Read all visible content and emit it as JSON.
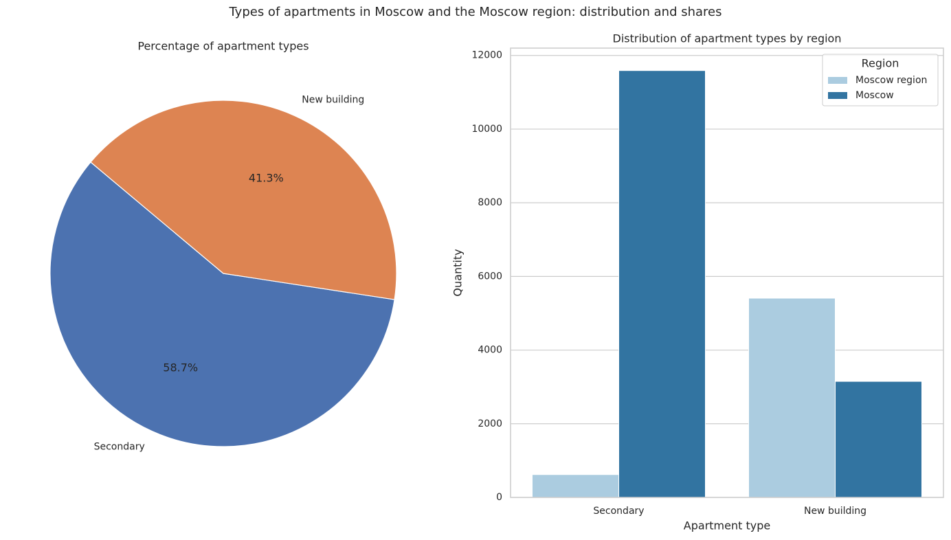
{
  "title": "Types of apartments in Moscow and the Moscow region: distribution and shares",
  "chart_data": [
    {
      "type": "pie",
      "title": "Percentage of apartment types",
      "categories": [
        "Secondary",
        "New building"
      ],
      "values": [
        58.7,
        41.3
      ],
      "value_labels": [
        "58.7%",
        "41.3%"
      ],
      "colors": [
        "#4c72b0",
        "#dd8452"
      ]
    },
    {
      "type": "bar",
      "title": "Distribution of apartment types by region",
      "categories": [
        "Secondary",
        "New building"
      ],
      "series": [
        {
          "name": "Moscow region",
          "color": "#abcce0",
          "values": [
            620,
            5410
          ]
        },
        {
          "name": "Moscow",
          "color": "#3274a1",
          "values": [
            11590,
            3150
          ]
        }
      ],
      "xlabel": "Apartment type",
      "ylabel": "Quantity",
      "ylim": [
        0,
        12200
      ],
      "yticks": [
        0,
        2000,
        4000,
        6000,
        8000,
        10000,
        12000
      ],
      "grid": true,
      "legend_title": "Region",
      "legend": "upper right"
    }
  ]
}
